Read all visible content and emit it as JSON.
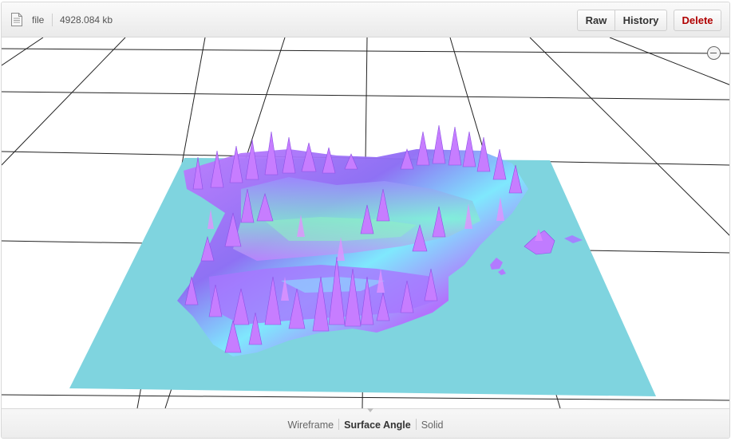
{
  "header": {
    "file_icon": "document-icon",
    "file_label": "file",
    "file_size": "4928.084 kb",
    "raw_label": "Raw",
    "history_label": "History",
    "delete_label": "Delete",
    "delete_color": "#b00000"
  },
  "viewer": {
    "zoom_icon": "zoom-out-icon",
    "base_plane_color": "#7fd4df",
    "terrain_colors": [
      "#b26bff",
      "#8a5cf0",
      "#d27bff",
      "#6fe0ff",
      "#7fffb5",
      "#e08cff"
    ]
  },
  "footer": {
    "modes": [
      {
        "label": "Wireframe",
        "active": false
      },
      {
        "label": "Surface Angle",
        "active": true
      },
      {
        "label": "Solid",
        "active": false
      }
    ]
  }
}
